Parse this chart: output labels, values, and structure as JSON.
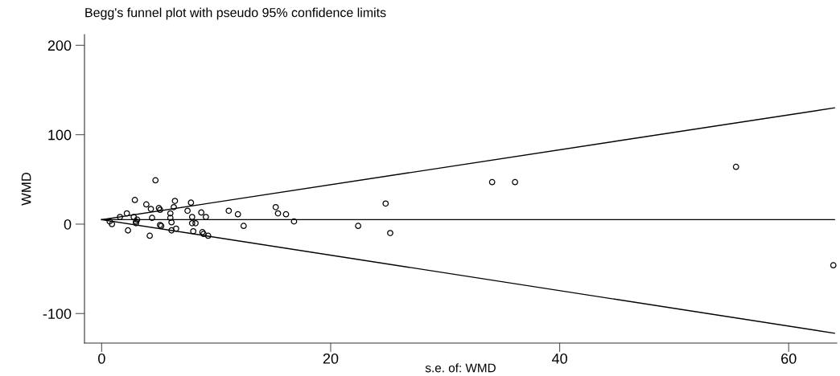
{
  "chart_data": {
    "type": "scatter",
    "title": "Begg's funnel plot with pseudo 95% confidence limits",
    "xlabel": "s.e. of: WMD",
    "ylabel": "WMD",
    "xlim": [
      -1.5,
      64.2
    ],
    "ylim": [
      -133,
      212
    ],
    "xticks": [
      0,
      20,
      40,
      60
    ],
    "yticks": [
      -100,
      0,
      100,
      200
    ],
    "grid": false,
    "legend": false,
    "series": [
      {
        "marker": "circle",
        "color": "#000000",
        "x": [
          4.7,
          2.9,
          3.9,
          4.3,
          5.0,
          5.1,
          6.4,
          6.3,
          7.8,
          7.5,
          8.7,
          9.1,
          2.2,
          1.6,
          2.8,
          3.1,
          3.0,
          4.4,
          6.0,
          6.0,
          7.9,
          6.1,
          7.9,
          8.2,
          0.7,
          0.9,
          3.0,
          5.1,
          5.2,
          2.3,
          4.2,
          6.1,
          6.5,
          8.0,
          8.8,
          8.9,
          9.3,
          11.1,
          11.9,
          12.4,
          15.2,
          15.4,
          16.1,
          16.8,
          22.4,
          24.8,
          25.2,
          34.1,
          36.1,
          55.4,
          63.9
        ],
        "values": [
          49,
          27,
          22,
          17,
          18,
          16,
          26,
          19,
          24,
          15,
          13,
          8,
          12,
          8,
          8,
          5,
          3,
          7,
          12,
          7,
          8,
          2,
          1,
          1,
          3,
          0,
          1,
          -1,
          -2,
          -7,
          -13,
          -7,
          -5,
          -8,
          -9,
          -11,
          -13,
          15,
          11,
          -2,
          19,
          12,
          11,
          3,
          -2,
          23,
          -10,
          47,
          47,
          64,
          -46
        ]
      },
      {
        "type": "line",
        "marker": "none",
        "line_style": "solid",
        "color": "#000000",
        "x": [
          0,
          64
        ],
        "values": [
          5,
          5
        ]
      },
      {
        "type": "line",
        "marker": "none",
        "line_style": "solid",
        "color": "#000000",
        "x": [
          0,
          64
        ],
        "values": [
          5,
          130
        ]
      },
      {
        "type": "line",
        "marker": "none",
        "line_style": "solid",
        "color": "#000000",
        "x": [
          0,
          64
        ],
        "values": [
          5,
          -122
        ]
      }
    ]
  }
}
